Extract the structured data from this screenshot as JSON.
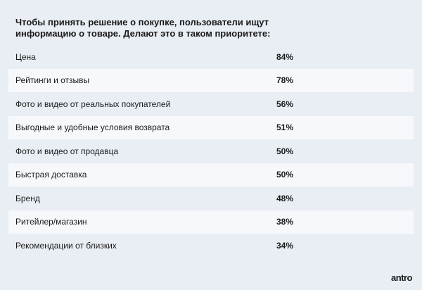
{
  "header": {
    "title": "Чтобы принять решение о покупке, пользователи ищут информацию о товаре. Делают это в таком приоритете:"
  },
  "table": {
    "rows": [
      [
        "Цена",
        "84%"
      ],
      [
        "Рейтинги и отзывы",
        "78%"
      ],
      [
        "Фото и видео от реальных покупателей",
        "56%"
      ],
      [
        "Выгодные и удобные условия возврата",
        "51%"
      ],
      [
        "Фото и видео от продавца",
        "50%"
      ],
      [
        "Быстрая доставка",
        "50%"
      ],
      [
        "Бренд",
        "48%"
      ],
      [
        "Ритейлер/магазин",
        "38%"
      ],
      [
        "Рекомендации от близких",
        "34%"
      ]
    ]
  },
  "footer": {
    "logo": "antro"
  }
}
